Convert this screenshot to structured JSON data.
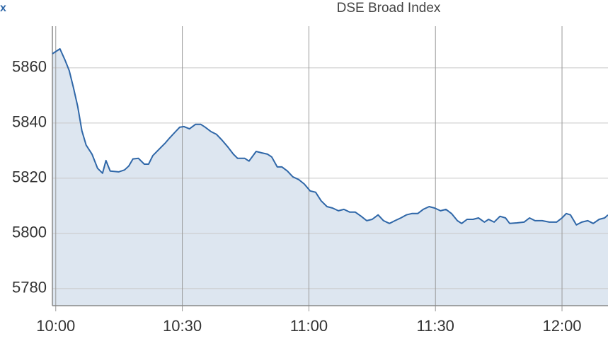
{
  "chart_data": {
    "type": "area",
    "title": "DSE Broad Index",
    "corner_label": "x",
    "color": "#2f67a8",
    "fill": "#dde6f0",
    "grid": true,
    "x": [
      599.2,
      601.0,
      602.2,
      603.2,
      604.2,
      605.2,
      606.2,
      607.2,
      608.6,
      609.9,
      611.1,
      611.9,
      612.9,
      614.9,
      616.3,
      617.3,
      618.3,
      619.6,
      621.0,
      622.0,
      623.0,
      625.0,
      626.0,
      627.0,
      628.4,
      629.4,
      630.4,
      631.7,
      633.1,
      634.4,
      635.4,
      636.8,
      638.1,
      639.4,
      640.8,
      642.1,
      643.1,
      644.8,
      645.8,
      647.5,
      648.8,
      650.2,
      651.2,
      652.5,
      653.6,
      654.9,
      656.2,
      657.6,
      658.9,
      660.3,
      661.6,
      662.9,
      664.3,
      665.6,
      667.0,
      668.3,
      669.7,
      671.0,
      672.4,
      673.7,
      675.0,
      676.4,
      677.7,
      679.1,
      680.4,
      681.8,
      683.1,
      684.4,
      685.8,
      687.1,
      688.5,
      689.8,
      691.2,
      692.5,
      693.8,
      695.2,
      696.2,
      697.5,
      698.9,
      700.2,
      701.6,
      702.6,
      703.9,
      705.3,
      706.6,
      707.6,
      709.3,
      711.0,
      712.3,
      713.6,
      715.3,
      717.0,
      718.7,
      720.0,
      721.0,
      722.0,
      723.4,
      724.7,
      726.1,
      727.4,
      728.8,
      730.1,
      730.9
    ],
    "values": [
      5865.1,
      5866.9,
      5862.8,
      5859.0,
      5852.8,
      5846.0,
      5837.2,
      5832.0,
      5828.7,
      5823.6,
      5821.8,
      5826.4,
      5822.6,
      5822.3,
      5823.0,
      5824.4,
      5827.0,
      5827.2,
      5825.1,
      5825.1,
      5828.2,
      5831.3,
      5832.8,
      5834.6,
      5836.9,
      5838.5,
      5838.7,
      5837.9,
      5839.5,
      5839.5,
      5838.5,
      5836.9,
      5835.9,
      5833.8,
      5831.3,
      5828.7,
      5827.2,
      5827.2,
      5826.2,
      5829.7,
      5829.2,
      5828.7,
      5827.7,
      5824.1,
      5824.1,
      5822.6,
      5820.5,
      5819.5,
      5817.9,
      5815.4,
      5814.9,
      5811.8,
      5809.7,
      5809.2,
      5808.2,
      5808.7,
      5807.7,
      5807.7,
      5806.2,
      5804.6,
      5805.1,
      5806.7,
      5804.6,
      5803.6,
      5804.6,
      5805.6,
      5806.7,
      5807.2,
      5807.2,
      5808.7,
      5809.7,
      5809.2,
      5808.2,
      5808.7,
      5807.2,
      5804.6,
      5803.6,
      5805.1,
      5805.1,
      5805.6,
      5804.1,
      5805.1,
      5804.1,
      5806.2,
      5805.6,
      5803.6,
      5803.8,
      5804.1,
      5805.6,
      5804.6,
      5804.6,
      5804.1,
      5804.1,
      5805.6,
      5807.2,
      5806.7,
      5803.1,
      5804.1,
      5804.6,
      5803.6,
      5805.1,
      5805.6,
      5806.7
    ],
    "xlim": [
      599.2,
      730.9
    ],
    "xticks": [
      {
        "value": 600,
        "label": "10:00"
      },
      {
        "value": 630,
        "label": "10:30"
      },
      {
        "value": 660,
        "label": "11:00"
      },
      {
        "value": 690,
        "label": "11:30"
      },
      {
        "value": 720,
        "label": "12:00"
      }
    ],
    "ylim": [
      5773.8,
      5875.1
    ],
    "yticks": [
      5780,
      5800,
      5820,
      5840,
      5860
    ]
  }
}
